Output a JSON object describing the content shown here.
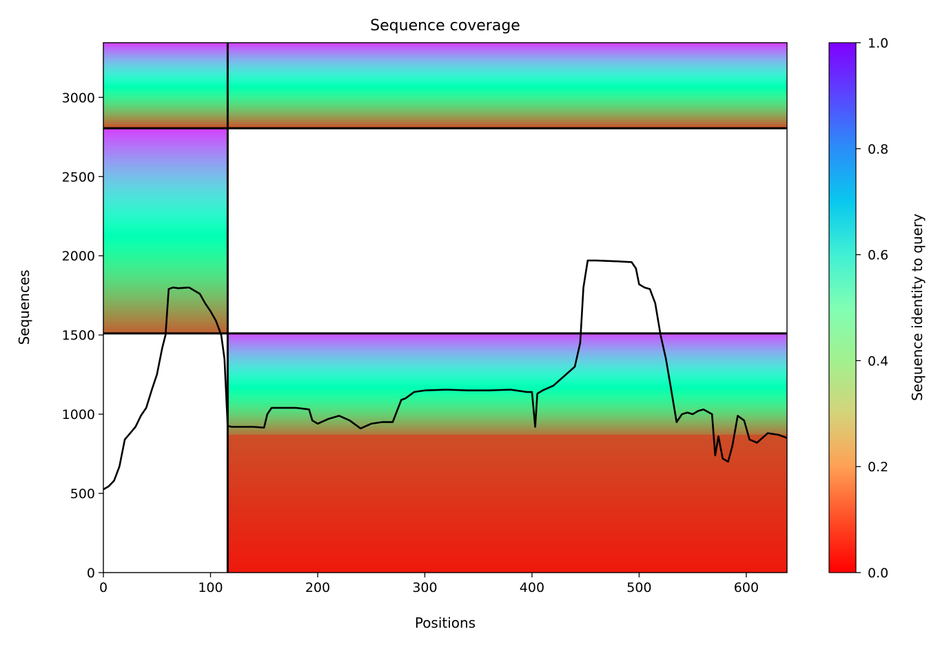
{
  "chart_data": {
    "type": "heatmap",
    "title": "Sequence coverage",
    "xlabel": "Positions",
    "ylabel": "Sequences",
    "xlim": [
      0,
      638
    ],
    "ylim": [
      0,
      3345
    ],
    "xticks": [
      0,
      100,
      200,
      300,
      400,
      500,
      600
    ],
    "yticks": [
      0,
      500,
      1000,
      1500,
      2000,
      2500,
      3000
    ],
    "colorbar": {
      "label": "Sequence identity to query",
      "range": [
        0,
        1
      ],
      "ticks": [
        "0.0",
        "0.2",
        "0.4",
        "0.6",
        "0.8",
        "1.0"
      ],
      "colormap": "rainbow_r"
    },
    "chain_boundary_x": 116,
    "blocks": [
      {
        "x": [
          0,
          638
        ],
        "y": [
          2805,
          3345
        ],
        "identity_bottom": 0.1,
        "identity_top": 0.92
      },
      {
        "x": [
          0,
          116
        ],
        "y": [
          1510,
          2805
        ],
        "identity_bottom": 0.12,
        "identity_top": 0.92
      },
      {
        "x": [
          116,
          638
        ],
        "y": [
          870,
          1510
        ],
        "identity_bottom": 0.15,
        "identity_top": 0.9
      },
      {
        "x": [
          116,
          638
        ],
        "y": [
          0,
          870
        ],
        "identity_bottom": 0.03,
        "identity_top": 0.1
      }
    ],
    "block_separators_y": [
      1510,
      2805
    ],
    "coverage_line": {
      "x": [
        0,
        5,
        10,
        15,
        20,
        25,
        30,
        35,
        40,
        45,
        50,
        55,
        58,
        61,
        65,
        70,
        80,
        90,
        95,
        100,
        105,
        110,
        113,
        116,
        120,
        130,
        140,
        150,
        153,
        157,
        165,
        180,
        192,
        195,
        200,
        210,
        220,
        230,
        240,
        250,
        260,
        270,
        278,
        282,
        290,
        300,
        320,
        340,
        360,
        380,
        395,
        400,
        403,
        405,
        410,
        420,
        430,
        440,
        445,
        448,
        452,
        460,
        480,
        493,
        497,
        500,
        505,
        510,
        515,
        520,
        525,
        530,
        535,
        540,
        545,
        550,
        555,
        560,
        568,
        571,
        574,
        578,
        583,
        587,
        592,
        598,
        603,
        610,
        620,
        630,
        638
      ],
      "y": [
        525,
        545,
        580,
        670,
        840,
        880,
        920,
        990,
        1040,
        1150,
        1250,
        1420,
        1500,
        1790,
        1800,
        1795,
        1800,
        1760,
        1700,
        1650,
        1590,
        1500,
        1350,
        925,
        920,
        920,
        920,
        915,
        1000,
        1040,
        1040,
        1040,
        1030,
        960,
        940,
        970,
        990,
        960,
        910,
        940,
        950,
        950,
        1090,
        1100,
        1140,
        1150,
        1155,
        1150,
        1150,
        1155,
        1140,
        1140,
        920,
        1130,
        1150,
        1180,
        1240,
        1300,
        1450,
        1800,
        1970,
        1970,
        1965,
        1960,
        1920,
        1820,
        1800,
        1790,
        1700,
        1500,
        1350,
        1150,
        950,
        1000,
        1010,
        1000,
        1020,
        1030,
        1000,
        740,
        860,
        720,
        700,
        800,
        990,
        960,
        840,
        820,
        880,
        870,
        850
      ]
    }
  }
}
